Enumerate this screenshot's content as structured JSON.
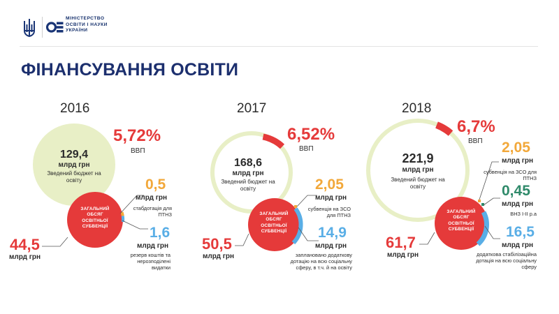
{
  "header": {
    "ministry_lines": [
      "МІНІСТЕРСТВО",
      "ОСВІТИ І НАУКИ",
      "УКРАЇНИ"
    ]
  },
  "page_title": "ФІНАНСУВАННЯ ОСВІТИ",
  "colors": {
    "red": "#e53a3a",
    "light_green": "#e8efc6",
    "orange": "#f2a83a",
    "blue": "#59aee6",
    "green": "#2f8a6a",
    "navy": "#1c2f6e"
  },
  "years": [
    {
      "year": "2016",
      "gdp": "5,72%",
      "gdp_label": "ВВП",
      "budget_value": "129,4",
      "budget_unit": "млрд грн",
      "budget_note": "Зведений бюджет на освіту",
      "subvention_title": "ЗАГАЛЬНИЙ ОБСЯГ ОСВІТНЬОЇ СУБВЕНЦІЇ",
      "subvention_value": "44,5",
      "subvention_unit": "млрд грн",
      "items": [
        {
          "value": "0,5",
          "unit": "млрд грн",
          "desc": "стабдотація для ПТНЗ",
          "color": "orange"
        },
        {
          "value": "1,6",
          "unit": "млрд грн",
          "desc": "резерв коштів та нерозподілені видатки",
          "color": "blue"
        }
      ]
    },
    {
      "year": "2017",
      "gdp": "6,52%",
      "gdp_label": "ВВП",
      "budget_value": "168,6",
      "budget_unit": "млрд грн",
      "budget_note": "Зведений бюджет на освіту",
      "subvention_title": "ЗАГАЛЬНИЙ ОБСЯГ ОСВІТНЬОЇ СУБВЕНЦІЇ",
      "subvention_value": "50,5",
      "subvention_unit": "млрд грн",
      "items": [
        {
          "value": "2,05",
          "unit": "млрд грн",
          "desc": "субвенція на ЗСО для ПТНЗ",
          "color": "orange"
        },
        {
          "value": "14,9",
          "unit": "млрд грн",
          "desc": "заплановано додаткову дотацію на всю соціальну сферу, в т.ч. й на освіту",
          "color": "blue"
        }
      ]
    },
    {
      "year": "2018",
      "gdp": "6,7%",
      "gdp_label": "ВВП",
      "budget_value": "221,9",
      "budget_unit": "млрд грн",
      "budget_note": "Зведений бюджет на освіту",
      "subvention_title": "ЗАГАЛЬНИЙ ОБСЯГ ОСВІТНЬОЇ СУБВЕНЦІЇ",
      "subvention_value": "61,7",
      "subvention_unit": "млрд грн",
      "items": [
        {
          "value": "2,05",
          "unit": "млрд грн",
          "desc": "субвенція на ЗСО для ПТНЗ",
          "color": "orange"
        },
        {
          "value": "0,45",
          "unit": "млрд грн",
          "desc": "ВНЗ І-ІІ р.а",
          "color": "green"
        },
        {
          "value": "16,5",
          "unit": "млрд грн",
          "desc": "додаткова стабілізаційна дотація на всю соціальну сферу",
          "color": "blue"
        }
      ]
    }
  ]
}
